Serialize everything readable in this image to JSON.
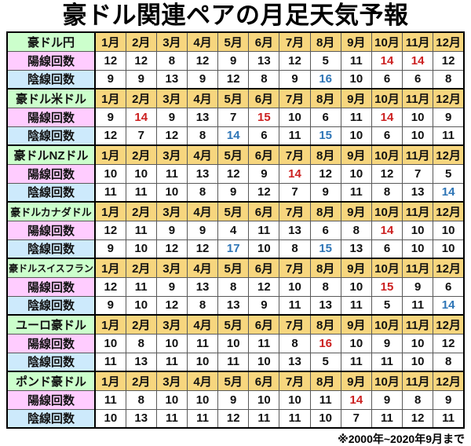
{
  "title": "豪ドル関連ペアの月足天気予報",
  "footnote": "※2000年~2020年9月まで",
  "colors": {
    "pair_bg": "#ccffcc",
    "month_bg": "#f7d67e",
    "bull_bg": "#ffccff",
    "bear_bg": "#cdeafc",
    "red": "#cc2020",
    "blue": "#2e75b6"
  },
  "chart_data": {
    "type": "table",
    "title": "豪ドル関連ペアの月足天気予報",
    "categories": [
      "1月",
      "2月",
      "3月",
      "4月",
      "5月",
      "6月",
      "7月",
      "8月",
      "9月",
      "10月",
      "11月",
      "12月"
    ],
    "row_labels": {
      "bull": "陽線回数",
      "bear": "陰線回数"
    },
    "footnote": "※2000年~2020年9月まで",
    "mark_legend": {
      "r": "red-highlight",
      "b": "blue-highlight"
    },
    "sections": [
      {
        "pair": "豪ドル円",
        "bull": {
          "values": [
            12,
            12,
            8,
            12,
            9,
            13,
            12,
            5,
            11,
            14,
            14,
            12
          ],
          "marks": [
            "",
            "",
            "",
            "",
            "",
            "",
            "",
            "",
            "",
            "r",
            "r",
            ""
          ]
        },
        "bear": {
          "values": [
            9,
            9,
            13,
            9,
            12,
            8,
            9,
            16,
            10,
            6,
            6,
            8
          ],
          "marks": [
            "",
            "",
            "",
            "",
            "",
            "",
            "",
            "b",
            "",
            "",
            "",
            ""
          ]
        }
      },
      {
        "pair": "豪ドル米ドル",
        "bull": {
          "values": [
            9,
            14,
            9,
            13,
            7,
            15,
            10,
            6,
            11,
            14,
            10,
            9
          ],
          "marks": [
            "",
            "r",
            "",
            "",
            "",
            "r",
            "",
            "",
            "",
            "r",
            "",
            ""
          ]
        },
        "bear": {
          "values": [
            12,
            7,
            12,
            8,
            14,
            6,
            11,
            15,
            10,
            6,
            10,
            11
          ],
          "marks": [
            "",
            "",
            "",
            "",
            "b",
            "",
            "",
            "b",
            "",
            "",
            "",
            ""
          ]
        }
      },
      {
        "pair": "豪ドルNZドル",
        "bull": {
          "values": [
            10,
            10,
            11,
            13,
            12,
            9,
            14,
            12,
            10,
            12,
            7,
            5
          ],
          "marks": [
            "",
            "",
            "",
            "",
            "",
            "",
            "r",
            "",
            "",
            "",
            "",
            ""
          ]
        },
        "bear": {
          "values": [
            11,
            11,
            10,
            8,
            9,
            12,
            7,
            9,
            11,
            8,
            13,
            14
          ],
          "marks": [
            "",
            "",
            "",
            "",
            "",
            "",
            "",
            "",
            "",
            "",
            "",
            "b"
          ]
        }
      },
      {
        "pair": "豪ドルカナダドル",
        "bull": {
          "values": [
            12,
            11,
            9,
            9,
            4,
            11,
            13,
            6,
            8,
            14,
            10,
            10
          ],
          "marks": [
            "",
            "",
            "",
            "",
            "",
            "",
            "",
            "",
            "",
            "r",
            "",
            ""
          ]
        },
        "bear": {
          "values": [
            9,
            10,
            12,
            12,
            17,
            10,
            8,
            15,
            13,
            6,
            10,
            10
          ],
          "marks": [
            "",
            "",
            "",
            "",
            "b",
            "",
            "",
            "b",
            "",
            "",
            "",
            ""
          ]
        }
      },
      {
        "pair": "豪ドルスイスフラン",
        "bull": {
          "values": [
            12,
            11,
            9,
            13,
            8,
            12,
            10,
            8,
            10,
            15,
            9,
            6
          ],
          "marks": [
            "",
            "",
            "",
            "",
            "",
            "",
            "",
            "",
            "",
            "r",
            "",
            ""
          ]
        },
        "bear": {
          "values": [
            9,
            10,
            12,
            8,
            13,
            9,
            11,
            13,
            11,
            5,
            11,
            14
          ],
          "marks": [
            "",
            "",
            "",
            "",
            "",
            "",
            "",
            "",
            "",
            "",
            "",
            "b"
          ]
        }
      },
      {
        "pair": "ユーロ豪ドル",
        "bull": {
          "values": [
            10,
            8,
            10,
            11,
            10,
            11,
            8,
            16,
            10,
            9,
            10,
            12
          ],
          "marks": [
            "",
            "",
            "",
            "",
            "",
            "",
            "",
            "r",
            "",
            "",
            "",
            ""
          ]
        },
        "bear": {
          "values": [
            11,
            13,
            11,
            10,
            11,
            10,
            13,
            5,
            11,
            11,
            10,
            8
          ],
          "marks": [
            "",
            "",
            "",
            "",
            "",
            "",
            "",
            "",
            "",
            "",
            "",
            ""
          ]
        }
      },
      {
        "pair": "ポンド豪ドル",
        "bull": {
          "values": [
            11,
            8,
            10,
            10,
            9,
            10,
            10,
            11,
            14,
            9,
            8,
            9
          ],
          "marks": [
            "",
            "",
            "",
            "",
            "",
            "",
            "",
            "",
            "r",
            "",
            "",
            ""
          ]
        },
        "bear": {
          "values": [
            10,
            13,
            11,
            11,
            12,
            11,
            11,
            10,
            7,
            11,
            12,
            11
          ],
          "marks": [
            "",
            "",
            "",
            "",
            "",
            "",
            "",
            "",
            "",
            "",
            "",
            ""
          ]
        }
      }
    ]
  }
}
